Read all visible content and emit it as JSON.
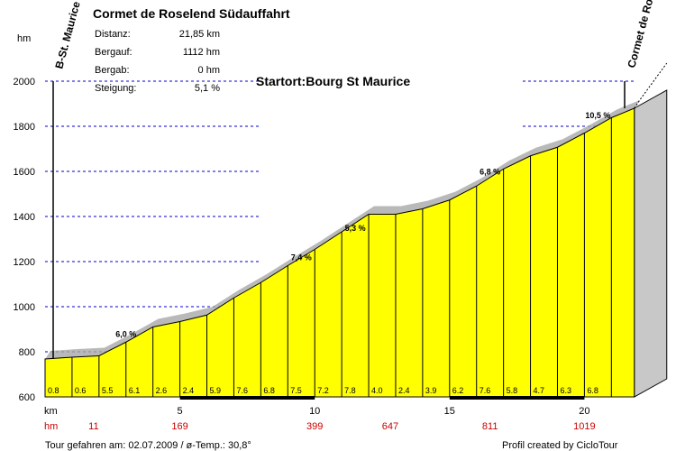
{
  "title": "Cormet de Roselend Südauffahrt",
  "y_unit": "hm",
  "x_unit": "km",
  "start_label": "B-St. Maurice",
  "end_label": "Cormet de Roselend",
  "startort": "Startort:Bourg St Maurice",
  "stats": [
    {
      "label": "Distanz:",
      "value": "21,85 km"
    },
    {
      "label": "Bergauf:",
      "value": "1112 hm"
    },
    {
      "label": "Bergab:",
      "value": "0 hm"
    },
    {
      "label": "Steigung:",
      "value": "5,1 %"
    }
  ],
  "footer_left": "Tour gefahren am: 02.07.2009  /  ø-Temp.: 30,8°",
  "footer_right": "Profil created by CicloTour",
  "colors": {
    "fill": "#ffff00",
    "gridline": "#0000cc",
    "hm_text": "#cc0000",
    "shadow": "#a8a8a8"
  },
  "chart_data": {
    "type": "area",
    "title": "Cormet de Roselend Südauffahrt",
    "xlabel": "km",
    "ylabel": "hm",
    "xlim": [
      0,
      22
    ],
    "ylim": [
      600,
      2000
    ],
    "x_ticks": [
      5,
      10,
      15,
      20
    ],
    "y_ticks": [
      600,
      800,
      1000,
      1200,
      1400,
      1600,
      1800,
      2000
    ],
    "x": [
      0,
      1,
      2,
      3,
      4,
      5,
      6,
      7,
      8,
      9,
      10,
      11,
      12,
      13,
      14,
      15,
      16,
      17,
      18,
      19,
      20,
      21,
      21.85
    ],
    "elevation": [
      768,
      776,
      782,
      843,
      910,
      934,
      963,
      1039,
      1107,
      1182,
      1254,
      1332,
      1410,
      1410,
      1434,
      1473,
      1535,
      1611,
      1669,
      1707,
      1770,
      1838,
      1880
    ],
    "segment_gradients": [
      "0.8",
      "0.6",
      "5.5",
      "6.1",
      "2.6",
      "2.4",
      "5.9",
      "7.6",
      "6.8",
      "7.5",
      "7.2",
      "7.8",
      "4.0",
      "2.4",
      "3.9",
      "6.2",
      "7.6",
      "5.8",
      "4.7",
      "6.3",
      "6.8"
    ],
    "gradient_labels": [
      {
        "x": 3,
        "y": 850,
        "text": "6,0 %"
      },
      {
        "x": 9.5,
        "y": 1190,
        "text": "7,4 %"
      },
      {
        "x": 11.5,
        "y": 1320,
        "text": "5,3 %"
      },
      {
        "x": 16.5,
        "y": 1570,
        "text": "6,8 %"
      },
      {
        "x": 20.5,
        "y": 1820,
        "text": "10,5 %"
      }
    ],
    "hm_row": [
      {
        "x": 1.8,
        "text": "11"
      },
      {
        "x": 5,
        "text": "169"
      },
      {
        "x": 10,
        "text": "399"
      },
      {
        "x": 12.8,
        "text": "647"
      },
      {
        "x": 16.5,
        "text": "811"
      },
      {
        "x": 20,
        "text": "1019"
      }
    ]
  }
}
